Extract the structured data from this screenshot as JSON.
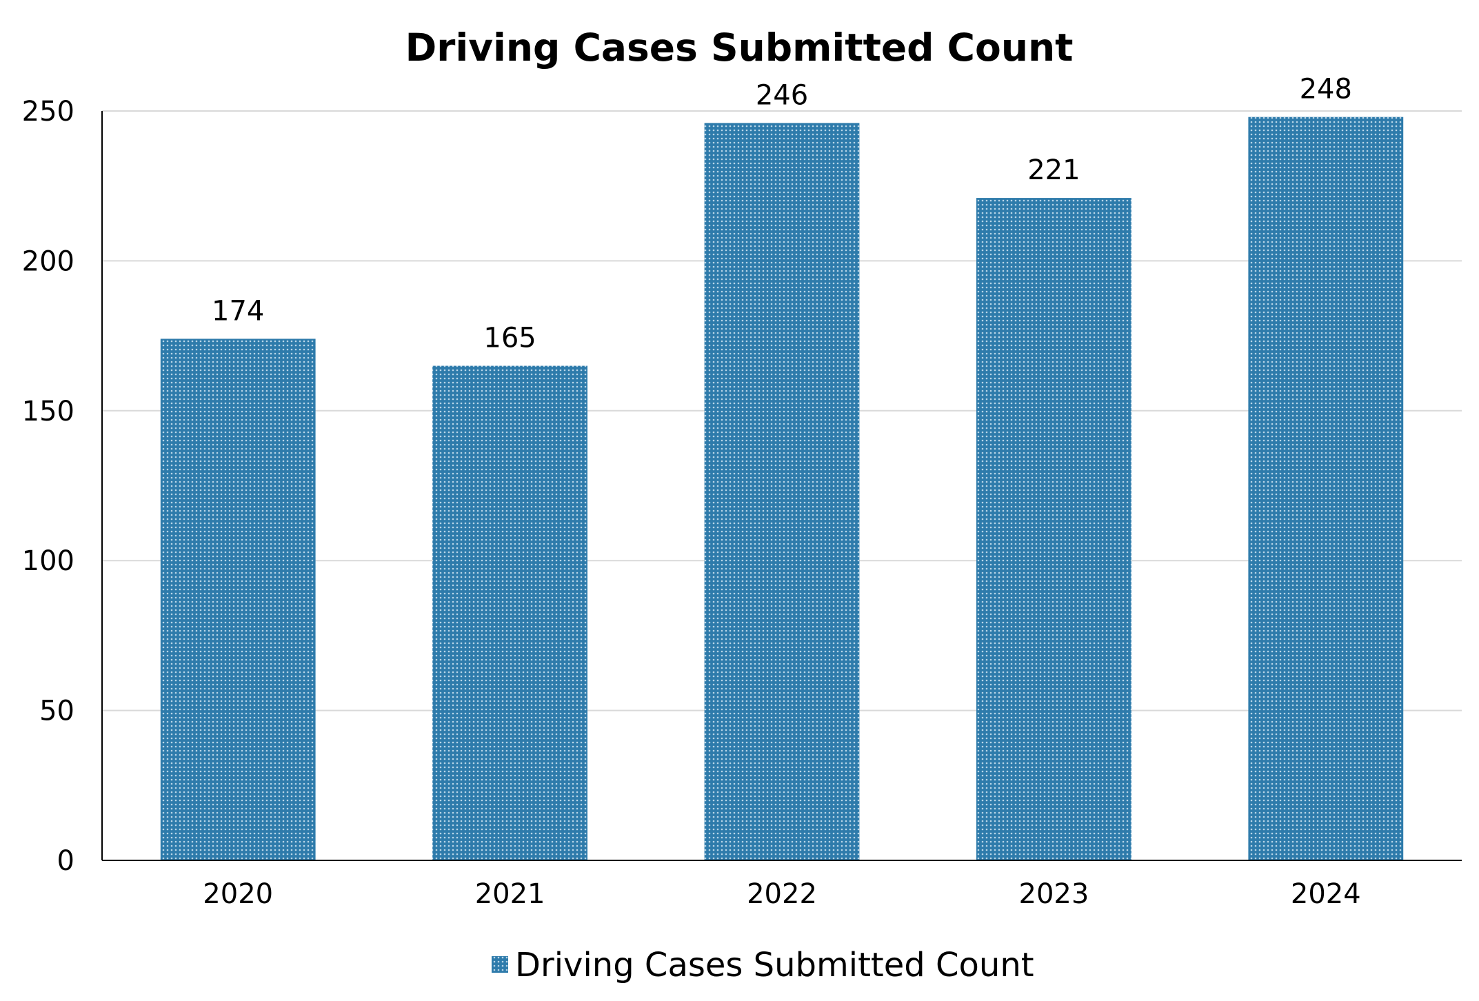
{
  "chart_data": {
    "type": "bar",
    "title": "Driving Cases Submitted Count",
    "xlabel": "",
    "ylabel": "",
    "categories": [
      "2020",
      "2021",
      "2022",
      "2023",
      "2024"
    ],
    "series": [
      {
        "name": "Driving Cases Submitted Count",
        "values": [
          174,
          165,
          246,
          221,
          248
        ],
        "color": "#2e7bab"
      }
    ],
    "ylim": [
      0,
      250
    ],
    "yticks": [
      "0",
      "50",
      "100",
      "150",
      "200",
      "250"
    ],
    "data_labels": [
      "174",
      "165",
      "246",
      "221",
      "248"
    ],
    "grid": true,
    "legend_position": "bottom"
  }
}
